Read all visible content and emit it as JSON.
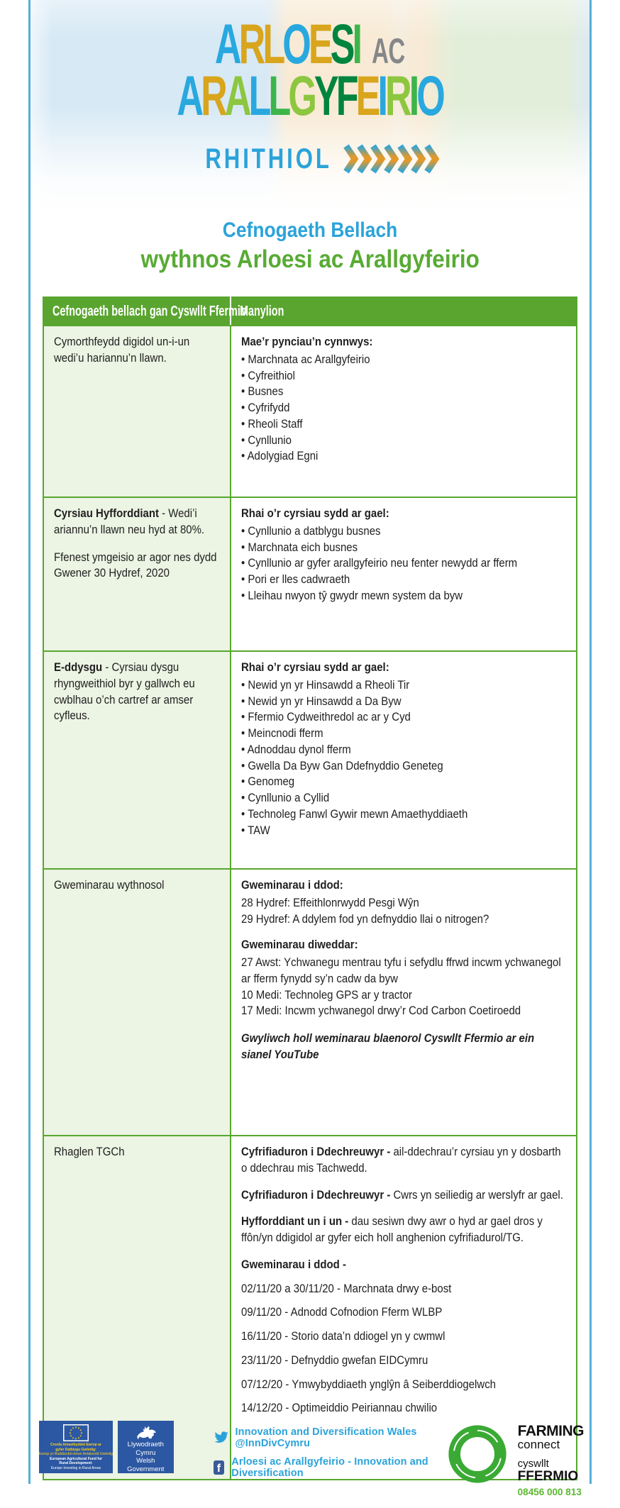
{
  "colors": {
    "frame_blue": "#54afd7",
    "accent_blue": "#2ba3da",
    "accent_green": "#58ab34",
    "table_green": "#5aa52f",
    "cell_light_green": "#ecf4e3",
    "phone_green": "#5cb82f",
    "eu_blue": "#2c57a2"
  },
  "logo": {
    "line1_letters": [
      {
        "ch": "A",
        "color": "#29a8df"
      },
      {
        "ch": "R",
        "color": "#d8a51d"
      },
      {
        "ch": "L",
        "color": "#d8a51d"
      },
      {
        "ch": "O",
        "color": "#29a8df"
      },
      {
        "ch": "E",
        "color": "#d8a51d"
      },
      {
        "ch": "S",
        "color": "#00843e"
      },
      {
        "ch": "I",
        "color": "#3cb54a"
      }
    ],
    "line1_suffix": "AC",
    "line2_letters": [
      {
        "ch": "A",
        "color": "#29a8df"
      },
      {
        "ch": "R",
        "color": "#d8a51d"
      },
      {
        "ch": "A",
        "color": "#8dc63f"
      },
      {
        "ch": "L",
        "color": "#29a8df"
      },
      {
        "ch": "L",
        "color": "#3cb54a"
      },
      {
        "ch": "G",
        "color": "#8dc63f"
      },
      {
        "ch": "Y",
        "color": "#00843e"
      },
      {
        "ch": "F",
        "color": "#00843e"
      },
      {
        "ch": "E",
        "color": "#d8a51d"
      },
      {
        "ch": "I",
        "color": "#29a8df"
      },
      {
        "ch": "R",
        "color": "#8dc63f"
      },
      {
        "ch": "I",
        "color": "#3cb54a"
      },
      {
        "ch": "O",
        "color": "#29a8df"
      }
    ],
    "tagline": "RHITHIOL",
    "chevron_count": 7
  },
  "title": {
    "subtitle": "Cefnogaeth Bellach",
    "main": "wythnos Arloesi ac Arallgyfeirio"
  },
  "table": {
    "headers": [
      "Cefnogaeth bellach gan Cyswllt Ffermio",
      "Manylion"
    ],
    "rows": [
      {
        "left": [
          [
            {
              "b": false,
              "t": "Cymorthfeydd digidol un-i-un wedi’u hariannu’n llawn."
            }
          ]
        ],
        "right": [
          {
            "type": "heading",
            "text": "Mae’r pynciau’n cynnwys:"
          },
          {
            "type": "bullets",
            "items": [
              "Marchnata ac Arallgyfeirio",
              "Cyfreithiol",
              "Busnes",
              "Cyfrifydd",
              "Rheoli Staff",
              "Cynllunio",
              "Adolygiad Egni"
            ]
          }
        ]
      },
      {
        "left": [
          [
            {
              "b": true,
              "t": "Cyrsiau Hyfforddiant"
            },
            {
              "b": false,
              "t": " - Wedi’i ariannu’n llawn neu hyd at 80%."
            }
          ],
          [
            {
              "b": false,
              "t": "Ffenest ymgeisio ar agor nes dydd Gwener 30 Hydref, 2020"
            }
          ]
        ],
        "right": [
          {
            "type": "heading",
            "text": "Rhai o’r cyrsiau sydd ar gael:"
          },
          {
            "type": "bullets",
            "items": [
              "Cynllunio a datblygu busnes",
              "Marchnata eich busnes",
              "Cynllunio ar gyfer arallgyfeirio neu fenter newydd ar fferm",
              "Pori er lles cadwraeth",
              "Lleihau nwyon tŷ gwydr mewn system da byw"
            ]
          }
        ]
      },
      {
        "left": [
          [
            {
              "b": true,
              "t": "E-ddysgu"
            },
            {
              "b": false,
              "t": " - Cyrsiau dysgu rhyngweithiol byr y gallwch eu cwblhau o’ch cartref ar amser cyfleus."
            }
          ]
        ],
        "right": [
          {
            "type": "heading",
            "text": "Rhai o’r cyrsiau sydd ar gael:"
          },
          {
            "type": "bullets",
            "items": [
              "Newid yn yr Hinsawdd a Rheoli Tir",
              "Newid yn yr Hinsawdd a Da Byw",
              "Ffermio Cydweithredol ac ar y Cyd",
              "Meincnodi fferm",
              "Adnoddau dynol fferm",
              "Gwella Da Byw Gan Ddefnyddio Geneteg",
              "Genomeg",
              "Cynllunio a Cyllid",
              "Technoleg Fanwl Gywir mewn Amaethyddiaeth",
              "TAW"
            ]
          }
        ]
      },
      {
        "left": [
          [
            {
              "b": false,
              "t": "Gweminarau wythnosol"
            }
          ]
        ],
        "right": [
          {
            "type": "heading",
            "text": "Gweminarau i ddod:"
          },
          {
            "type": "lines",
            "items": [
              "28 Hydref: Effeithlonrwydd Pesgi Wŷn",
              "29 Hydref: A ddylem fod yn defnyddio llai o nitrogen?"
            ]
          },
          {
            "type": "heading",
            "text": "Gweminarau diweddar:"
          },
          {
            "type": "lines",
            "items": [
              "27 Awst: Ychwanegu mentrau tyfu i sefydlu ffrwd incwm ychwanegol ar fferm fynydd sy’n cadw da byw",
              "10 Medi: Technoleg GPS ar y tractor",
              "17 Medi: Incwm ychwanegol drwy’r Cod Carbon Coetiroedd"
            ]
          },
          {
            "type": "note",
            "text": "Gwyliwch holl weminarau blaenorol Cyswllt Ffermio ar ein sianel YouTube"
          }
        ]
      },
      {
        "left": [
          [
            {
              "b": false,
              "t": "Rhaglen TGCh"
            }
          ]
        ],
        "right": [
          {
            "type": "para",
            "segments": [
              {
                "b": true,
                "t": "Cyfrifiaduron i Ddechreuwyr -"
              },
              {
                "b": false,
                "t": " ail-ddechrau’r cyrsiau yn y dosbarth o ddechrau mis Tachwedd."
              }
            ]
          },
          {
            "type": "para",
            "segments": [
              {
                "b": true,
                "t": "Cyfrifiaduron i Ddechreuwyr -"
              },
              {
                "b": false,
                "t": " Cwrs yn seiliedig ar werslyfr ar gael."
              }
            ]
          },
          {
            "type": "para",
            "segments": [
              {
                "b": true,
                "t": "Hyfforddiant un i un -"
              },
              {
                "b": false,
                "t": " dau sesiwn dwy awr o hyd ar gael dros y ffôn/yn ddigidol ar gyfer eich holl anghenion cyfrifiadurol/TG."
              }
            ]
          },
          {
            "type": "heading",
            "text": "Gweminarau i ddod -"
          },
          {
            "type": "datelines",
            "items": [
              "02/11/20 a 30/11/20 - Marchnata drwy e-bost",
              "09/11/20 - Adnodd Cofnodion Fferm WLBP",
              "16/11/20 - Storio data’n ddiogel yn y cwmwl",
              "23/11/20 - Defnyddio gwefan EIDCymru",
              "07/12/20 - Ymwybyddiaeth ynglŷn â Seiberddiogelwch",
              "14/12/20 - Optimeiddio Peiriannau chwilio"
            ]
          }
        ]
      }
    ]
  },
  "footer": {
    "eu": {
      "lines": [
        {
          "t": "Cronfa Amaethyddol Ewrop ar",
          "c": "yb"
        },
        {
          "t": "gyfer Datblygu Gwledig:",
          "c": "yb"
        },
        {
          "t": "Ewrop yn Buddsoddi mewn Ardaloedd Gwledig",
          "c": "y"
        },
        {
          "t": "European Agricultural Fund for",
          "c": "wb"
        },
        {
          "t": "Rural Development:",
          "c": "wb"
        },
        {
          "t": "Europe Investing in Rural Areas",
          "c": "w"
        }
      ]
    },
    "welsh_gov": {
      "line1": "Llywodraeth Cymru",
      "line2": "Welsh Government"
    },
    "twitter": {
      "text": "Innovation and Diversification Wales @InnDivCymru"
    },
    "facebook": {
      "text": "Arloesi ac Arallgyfeirio - Innovation and Diversification",
      "badge_letter": "f"
    },
    "farming_connect": {
      "line1": "FARMING",
      "line2": "connect",
      "line3": "cyswllt",
      "line4": "FFERMIO",
      "phone": "08456 000 813"
    }
  }
}
